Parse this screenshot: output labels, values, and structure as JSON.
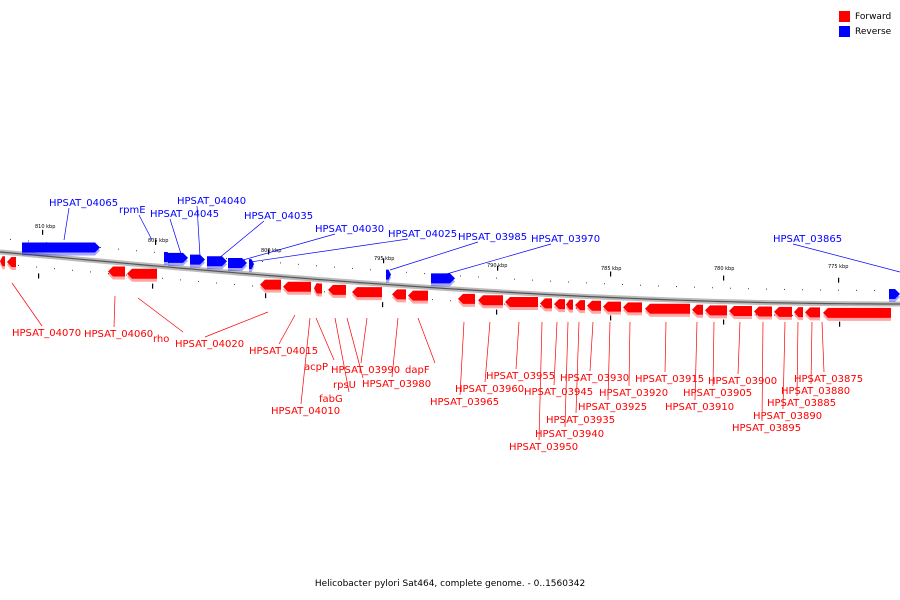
{
  "colors": {
    "forward": "#ff0000",
    "reverse": "#0000ff",
    "backbone": "#999999"
  },
  "legend": [
    {
      "label": "Forward",
      "color": "#ff0000"
    },
    {
      "label": "Reverse",
      "color": "#0000ff"
    }
  ],
  "caption": "Helicobacter pylori Sat464, complete genome. - 0..1560342",
  "scale_labels": [
    "810 kbp",
    "805 kbp",
    "800 kbp",
    "795 kbp",
    "790 kbp",
    "785 kbp",
    "780 kbp",
    "775 kbp"
  ],
  "reverse_genes": [
    "HPSAT_04065",
    "rpmE",
    "HPSAT_04045",
    "HPSAT_04040",
    "HPSAT_04035",
    "HPSAT_04030",
    "HPSAT_04025",
    "HPSAT_03985",
    "HPSAT_03970",
    "HPSAT_03865"
  ],
  "forward_genes": [
    "HPSAT_04070",
    "HPSAT_04060",
    "rho",
    "HPSAT_04020",
    "HPSAT_04015",
    "acpP",
    "HPSAT_04010",
    "fabG",
    "rpsU",
    "HPSAT_03990",
    "HPSAT_03980",
    "dapF",
    "HPSAT_03965",
    "HPSAT_03960",
    "HPSAT_03955",
    "HPSAT_03950",
    "HPSAT_03945",
    "HPSAT_03940",
    "HPSAT_03935",
    "HPSAT_03930",
    "HPSAT_03925",
    "HPSAT_03920",
    "HPSAT_03915",
    "HPSAT_03910",
    "HPSAT_03905",
    "HPSAT_03900",
    "HPSAT_03895",
    "HPSAT_03890",
    "HPSAT_03885",
    "HPSAT_03880",
    "HPSAT_03875"
  ]
}
